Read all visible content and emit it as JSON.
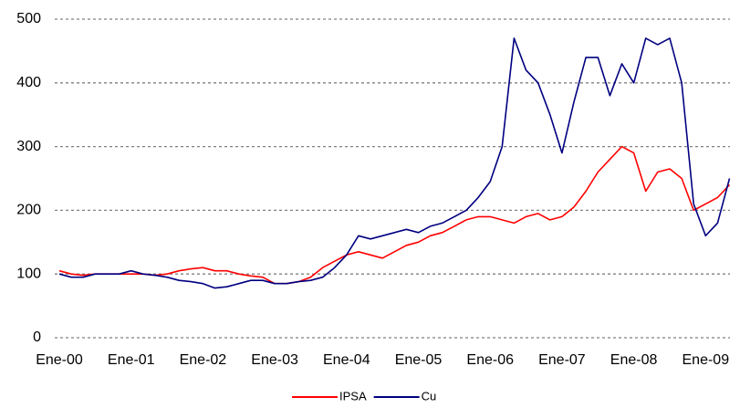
{
  "chart_data": {
    "type": "line",
    "categories": [
      "Ene-00",
      null,
      null,
      null,
      null,
      null,
      "Ene-01",
      null,
      null,
      null,
      null,
      null,
      "Ene-02",
      null,
      null,
      null,
      null,
      null,
      "Ene-03",
      null,
      null,
      null,
      null,
      null,
      "Ene-04",
      null,
      null,
      null,
      null,
      null,
      "Ene-05",
      null,
      null,
      null,
      null,
      null,
      "Ene-06",
      null,
      null,
      null,
      null,
      null,
      "Ene-07",
      null,
      null,
      null,
      null,
      null,
      "Ene-08",
      null,
      null,
      null,
      null,
      null,
      "Ene-09",
      null,
      null
    ],
    "series": [
      {
        "name": "IPSA",
        "color": "#ff0000",
        "values": [
          105,
          100,
          98,
          100,
          100,
          100,
          100,
          100,
          98,
          100,
          105,
          108,
          110,
          105,
          105,
          100,
          97,
          95,
          85,
          85,
          88,
          95,
          110,
          120,
          130,
          135,
          130,
          125,
          135,
          145,
          150,
          160,
          165,
          175,
          185,
          190,
          190,
          185,
          180,
          190,
          195,
          185,
          190,
          205,
          230,
          260,
          280,
          300,
          290,
          230,
          260,
          265,
          250,
          200,
          210,
          220,
          240
        ]
      },
      {
        "name": "Cu",
        "color": "#000080",
        "values": [
          100,
          95,
          95,
          100,
          100,
          100,
          105,
          100,
          98,
          95,
          90,
          88,
          85,
          78,
          80,
          85,
          90,
          90,
          85,
          85,
          88,
          90,
          95,
          110,
          130,
          160,
          155,
          160,
          165,
          170,
          165,
          175,
          180,
          190,
          200,
          220,
          245,
          300,
          470,
          420,
          400,
          350,
          290,
          370,
          440,
          440,
          380,
          430,
          400,
          470,
          460,
          470,
          400,
          210,
          160,
          180,
          250
        ]
      }
    ],
    "ylim": [
      0,
      500
    ],
    "yticks": [
      0,
      100,
      200,
      300,
      400,
      500
    ],
    "grid": true,
    "legend": "bottom"
  }
}
